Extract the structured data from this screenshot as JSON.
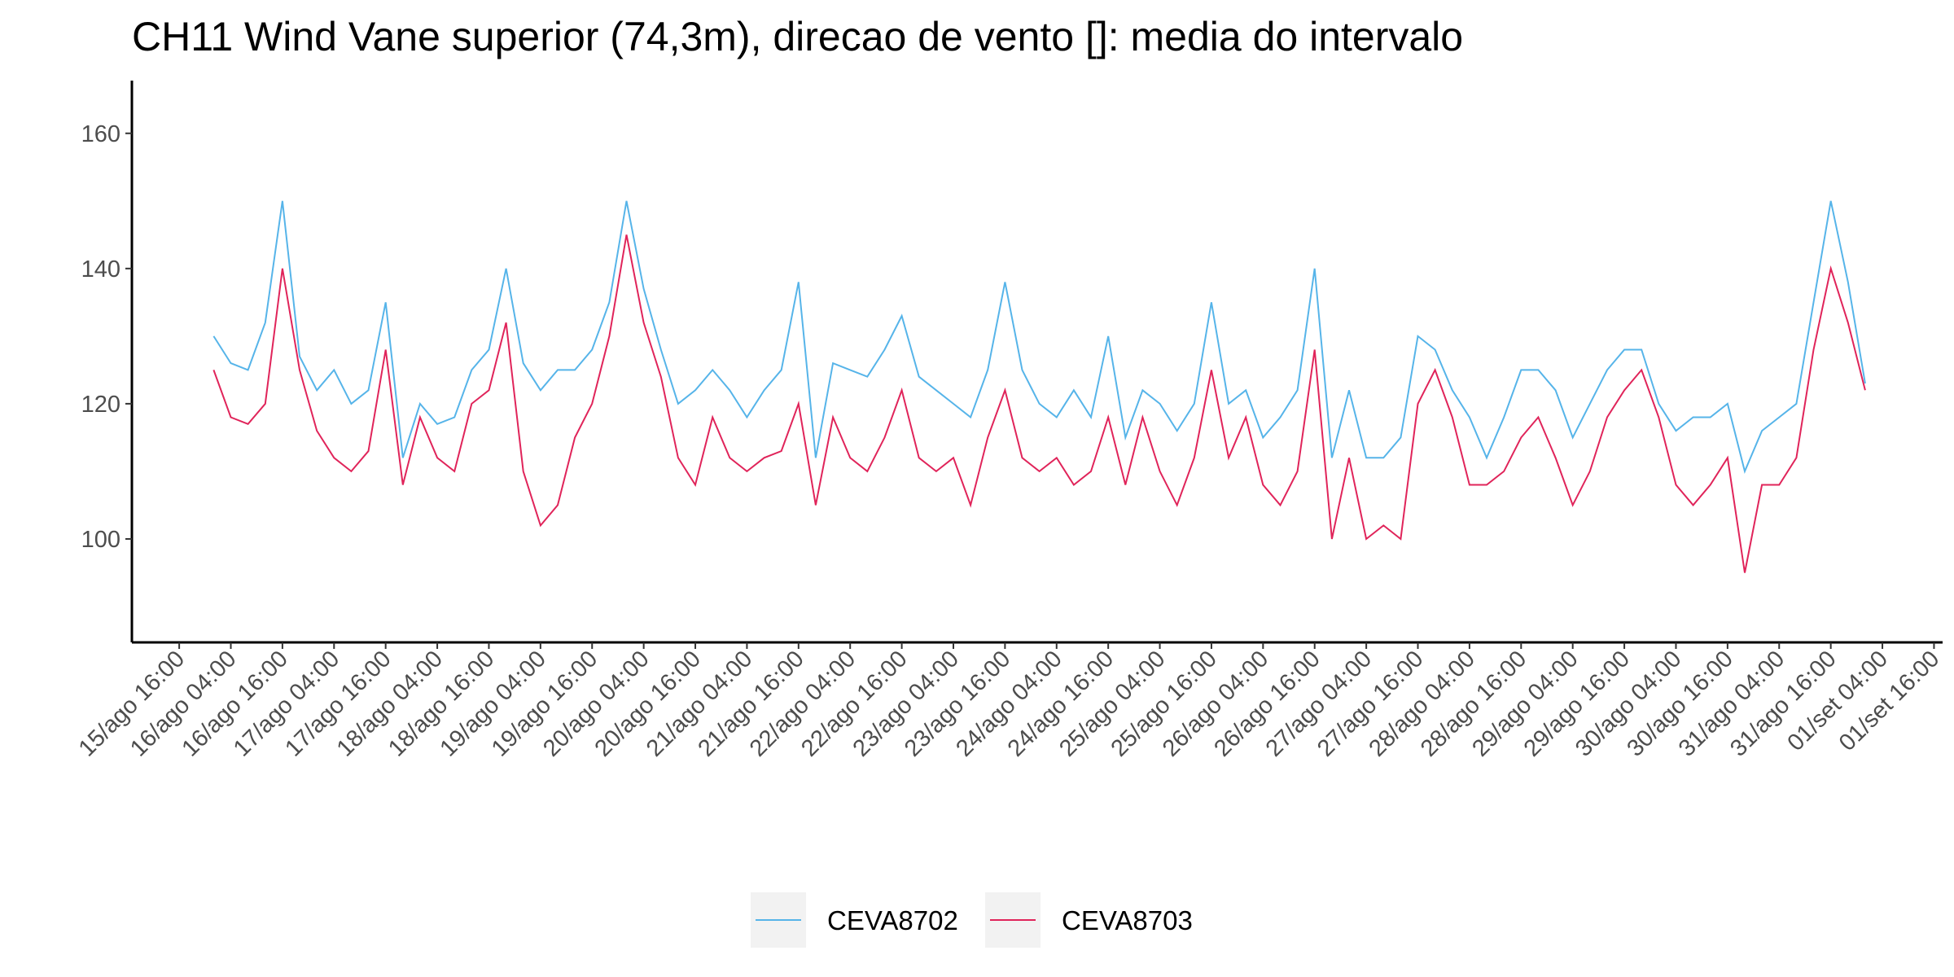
{
  "chart_data": {
    "type": "line",
    "title": "CH11 Wind Vane superior (74,3m), direcao de vento []: media do intervalo",
    "x": [
      "16/ago 00:00",
      "16/ago 04:00",
      "16/ago 08:00",
      "16/ago 12:00",
      "16/ago 16:00",
      "16/ago 20:00",
      "17/ago 00:00",
      "17/ago 04:00",
      "17/ago 08:00",
      "17/ago 12:00",
      "17/ago 16:00",
      "17/ago 20:00",
      "18/ago 00:00",
      "18/ago 04:00",
      "18/ago 08:00",
      "18/ago 12:00",
      "18/ago 16:00",
      "18/ago 20:00",
      "19/ago 00:00",
      "19/ago 04:00",
      "19/ago 08:00",
      "19/ago 12:00",
      "19/ago 16:00",
      "19/ago 20:00",
      "20/ago 00:00",
      "20/ago 04:00",
      "20/ago 08:00",
      "20/ago 12:00",
      "20/ago 16:00",
      "20/ago 20:00",
      "21/ago 00:00",
      "21/ago 04:00",
      "21/ago 08:00",
      "21/ago 12:00",
      "21/ago 16:00",
      "21/ago 20:00",
      "22/ago 00:00",
      "22/ago 04:00",
      "22/ago 08:00",
      "22/ago 12:00",
      "22/ago 16:00",
      "22/ago 20:00",
      "23/ago 00:00",
      "23/ago 04:00",
      "23/ago 08:00",
      "23/ago 12:00",
      "23/ago 16:00",
      "23/ago 20:00",
      "24/ago 00:00",
      "24/ago 04:00",
      "24/ago 08:00",
      "24/ago 12:00",
      "24/ago 16:00",
      "24/ago 20:00",
      "25/ago 00:00",
      "25/ago 04:00",
      "25/ago 08:00",
      "25/ago 12:00",
      "25/ago 16:00",
      "25/ago 20:00",
      "26/ago 00:00",
      "26/ago 04:00",
      "26/ago 08:00",
      "26/ago 12:00",
      "26/ago 16:00",
      "26/ago 20:00",
      "27/ago 00:00",
      "27/ago 04:00",
      "27/ago 08:00",
      "27/ago 12:00",
      "27/ago 16:00",
      "27/ago 20:00",
      "28/ago 00:00",
      "28/ago 04:00",
      "28/ago 08:00",
      "28/ago 12:00",
      "28/ago 16:00",
      "28/ago 20:00",
      "29/ago 00:00",
      "29/ago 04:00",
      "29/ago 08:00",
      "29/ago 12:00",
      "29/ago 16:00",
      "29/ago 20:00",
      "30/ago 00:00",
      "30/ago 04:00",
      "30/ago 08:00",
      "30/ago 12:00",
      "30/ago 16:00",
      "30/ago 20:00",
      "31/ago 00:00",
      "31/ago 04:00",
      "31/ago 08:00",
      "31/ago 12:00",
      "31/ago 16:00",
      "31/ago 20:00",
      "01/set 00:00"
    ],
    "series": [
      {
        "name": "CEVA8702",
        "color": "#56b4e9",
        "values": [
          130,
          126,
          125,
          132,
          150,
          127,
          122,
          125,
          120,
          122,
          135,
          112,
          120,
          117,
          118,
          125,
          128,
          140,
          126,
          122,
          125,
          125,
          128,
          135,
          150,
          137,
          128,
          120,
          122,
          125,
          122,
          118,
          122,
          125,
          138,
          112,
          126,
          125,
          124,
          128,
          133,
          124,
          122,
          120,
          118,
          125,
          138,
          125,
          120,
          118,
          122,
          118,
          130,
          115,
          122,
          120,
          116,
          120,
          135,
          120,
          122,
          115,
          118,
          122,
          140,
          112,
          122,
          112,
          112,
          115,
          130,
          128,
          122,
          118,
          112,
          118,
          125,
          125,
          122,
          115,
          120,
          125,
          128,
          128,
          120,
          116,
          118,
          118,
          120,
          110,
          116,
          118,
          120,
          135,
          150,
          138,
          123
        ]
      },
      {
        "name": "CEVA8703",
        "color": "#e0245a",
        "values": [
          125,
          118,
          117,
          120,
          140,
          125,
          116,
          112,
          110,
          113,
          128,
          108,
          118,
          112,
          110,
          120,
          122,
          132,
          110,
          102,
          105,
          115,
          120,
          130,
          145,
          132,
          124,
          112,
          108,
          118,
          112,
          110,
          112,
          113,
          120,
          105,
          118,
          112,
          110,
          115,
          122,
          112,
          110,
          112,
          105,
          115,
          122,
          112,
          110,
          112,
          108,
          110,
          118,
          108,
          118,
          110,
          105,
          112,
          125,
          112,
          118,
          108,
          105,
          110,
          128,
          100,
          112,
          100,
          102,
          100,
          120,
          125,
          118,
          108,
          108,
          110,
          115,
          118,
          112,
          105,
          110,
          118,
          122,
          125,
          118,
          108,
          105,
          108,
          112,
          95,
          108,
          108,
          112,
          128,
          140,
          132,
          122
        ]
      }
    ],
    "xlim": [
      "15/ago 05:00",
      "01/set 18:00"
    ],
    "xticks": [
      "15/ago 16:00",
      "16/ago 04:00",
      "16/ago 16:00",
      "17/ago 04:00",
      "17/ago 16:00",
      "18/ago 04:00",
      "18/ago 16:00",
      "19/ago 04:00",
      "19/ago 16:00",
      "20/ago 04:00",
      "20/ago 16:00",
      "21/ago 04:00",
      "21/ago 16:00",
      "22/ago 04:00",
      "22/ago 16:00",
      "23/ago 04:00",
      "23/ago 16:00",
      "24/ago 04:00",
      "24/ago 16:00",
      "25/ago 04:00",
      "25/ago 16:00",
      "26/ago 04:00",
      "26/ago 16:00",
      "27/ago 04:00",
      "27/ago 16:00",
      "28/ago 04:00",
      "28/ago 16:00",
      "29/ago 04:00",
      "29/ago 16:00",
      "30/ago 04:00",
      "30/ago 16:00",
      "31/ago 04:00",
      "31/ago 16:00",
      "01/set 04:00",
      "01/set 16:00"
    ],
    "ylim": [
      84.7,
      167.8
    ],
    "yticks": [
      100,
      120,
      140,
      160
    ],
    "legend": "bottom"
  }
}
